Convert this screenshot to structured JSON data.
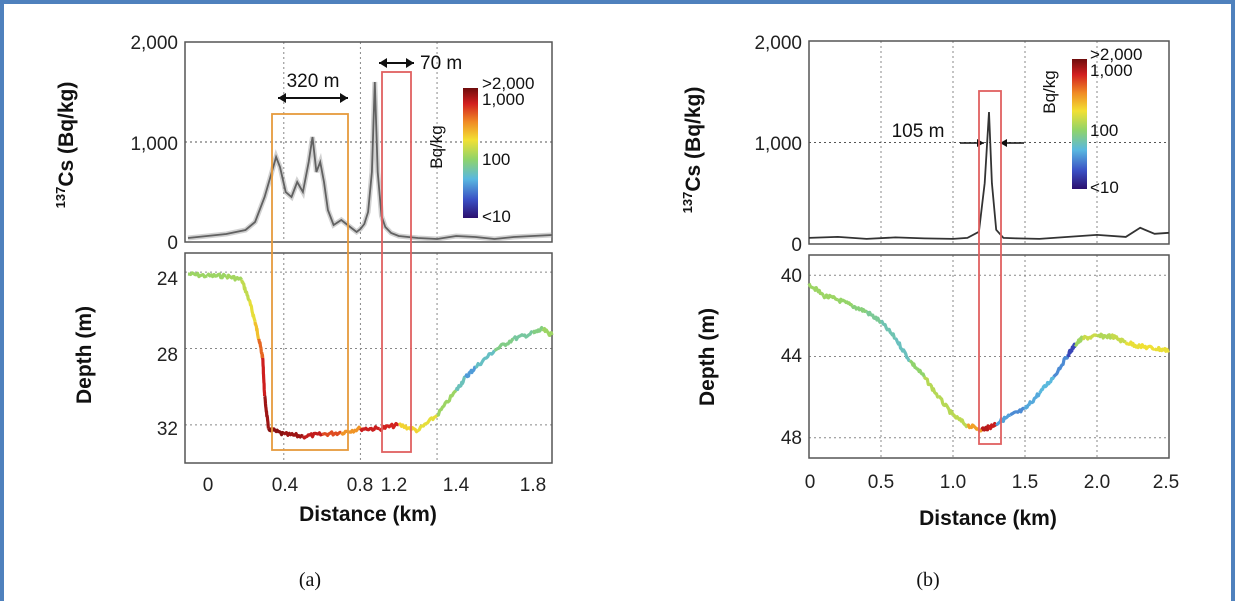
{
  "colors": {
    "frame": "#4f81bd",
    "line": "#333333",
    "box_a_wide": "#e69a3c",
    "box_narrow": "#e06060",
    "colorbar_stops": [
      "#2b0f6e",
      "#3a4fc4",
      "#59b8e0",
      "#8fd36b",
      "#f2e033",
      "#f08a24",
      "#d21f1f",
      "#6e0c0c"
    ]
  },
  "chart_data": [
    {
      "id": "a",
      "type": "line",
      "caption": "(a)",
      "top": {
        "ylabel_sup": "137",
        "ylabel": "Cs (Bq/kg)",
        "ylim": [
          0,
          2000
        ],
        "yticks": [
          "0",
          "1,000",
          "2,000"
        ],
        "xlim": [
          -0.1,
          1.8
        ],
        "series": {
          "x": [
            -0.1,
            0.0,
            0.1,
            0.2,
            0.25,
            0.3,
            0.33,
            0.36,
            0.38,
            0.41,
            0.44,
            0.47,
            0.5,
            0.53,
            0.55,
            0.57,
            0.59,
            0.61,
            0.63,
            0.66,
            0.7,
            0.74,
            0.78,
            0.8,
            0.82,
            0.84,
            0.86,
            0.875,
            0.89,
            0.91,
            0.93,
            0.96,
            1.0,
            1.1,
            1.2,
            1.3,
            1.4,
            1.5,
            1.6,
            1.7,
            1.8
          ],
          "values": [
            40,
            60,
            80,
            120,
            200,
            450,
            650,
            850,
            750,
            500,
            450,
            600,
            500,
            800,
            1050,
            700,
            800,
            600,
            320,
            170,
            220,
            160,
            100,
            130,
            180,
            300,
            700,
            1600,
            700,
            260,
            150,
            90,
            60,
            40,
            30,
            60,
            50,
            30,
            50,
            60,
            70
          ]
        },
        "annotations": [
          {
            "label": "320 m",
            "x0": 0.36,
            "x1": 0.64
          },
          {
            "label": "70 m",
            "x0": 0.82,
            "x1": 0.9
          }
        ],
        "colorbar": {
          "label": "Bq/kg",
          "ticks": [
            ">2,000",
            "1,000",
            "100",
            "<10"
          ]
        }
      },
      "bottom": {
        "ylabel": "Depth (m)",
        "ylim": [
          34,
          23
        ],
        "yticks": [
          "24",
          "28",
          "32"
        ],
        "xlabel": "Distance (km)",
        "xticks": [
          "0",
          "0.4",
          "0.8",
          "1.2",
          "1.4",
          "1.8"
        ],
        "xtick_values": [
          0,
          0.4,
          0.8,
          1.2,
          1.4,
          1.8
        ],
        "depth_profile": {
          "x": [
            -0.1,
            0.0,
            0.1,
            0.18,
            0.22,
            0.25,
            0.27,
            0.29,
            0.3,
            0.32,
            0.4,
            0.5,
            0.6,
            0.7,
            0.8,
            0.9,
            1.0,
            1.1,
            1.2,
            1.3,
            1.35,
            1.4,
            1.5,
            1.6,
            1.7,
            1.75,
            1.8
          ],
          "values": [
            24.1,
            24.2,
            24.2,
            24.4,
            25.5,
            26.6,
            27.5,
            28.5,
            30.5,
            32.2,
            32.5,
            32.6,
            32.5,
            32.4,
            32.2,
            32.2,
            32.0,
            32.3,
            31.5,
            30.2,
            29.5,
            29.0,
            28.1,
            27.5,
            27.2,
            27.0,
            27.3
          ],
          "color_levels": [
            30,
            30,
            30,
            35,
            55,
            80,
            150,
            500,
            900,
            1500,
            1500,
            900,
            700,
            150,
            250,
            1200,
            90,
            90,
            45,
            15,
            10,
            3,
            20,
            20,
            12,
            30,
            30
          ]
        },
        "boxes": [
          {
            "x0": 0.3,
            "x1": 0.66,
            "y0": 23.9,
            "y1": 33.1
          },
          {
            "x0": 0.81,
            "x1": 0.94,
            "y0": 23.9,
            "y1": 33.1
          }
        ]
      }
    },
    {
      "id": "b",
      "type": "line",
      "caption": "(b)",
      "top": {
        "ylabel_sup": "137",
        "ylabel": "Cs (Bq/kg)",
        "ylim": [
          0,
          2000
        ],
        "yticks": [
          "0",
          "1,000",
          "2,000"
        ],
        "xlim": [
          0,
          2.5
        ],
        "series": {
          "x": [
            0.0,
            0.2,
            0.4,
            0.6,
            0.8,
            1.0,
            1.1,
            1.18,
            1.22,
            1.25,
            1.27,
            1.3,
            1.35,
            1.45,
            1.6,
            1.8,
            2.0,
            2.2,
            2.3,
            2.4,
            2.5
          ],
          "values": [
            60,
            70,
            50,
            65,
            55,
            50,
            60,
            120,
            600,
            1300,
            600,
            140,
            60,
            55,
            50,
            70,
            90,
            70,
            160,
            100,
            110
          ]
        },
        "annotations": [
          {
            "label": "105 m",
            "x0": 1.2,
            "x1": 1.31
          }
        ],
        "colorbar": {
          "label": "Bq/kg",
          "ticks": [
            ">2,000",
            "1,000",
            "100",
            "<10"
          ]
        }
      },
      "bottom": {
        "ylabel": "Depth (m)",
        "ylim": [
          49,
          39
        ],
        "yticks": [
          "40",
          "44",
          "48"
        ],
        "xlabel": "Distance (km)",
        "xticks": [
          "0",
          "0.5",
          "1.0",
          "1.5",
          "2.0",
          "2.5"
        ],
        "xtick_values": [
          0,
          0.5,
          1.0,
          1.5,
          2.0,
          2.5
        ],
        "depth_profile": {
          "x": [
            0.0,
            0.1,
            0.2,
            0.3,
            0.4,
            0.5,
            0.6,
            0.7,
            0.8,
            0.9,
            1.0,
            1.1,
            1.2,
            1.25,
            1.3,
            1.4,
            1.5,
            1.6,
            1.7,
            1.8,
            1.85,
            1.9,
            2.0,
            2.1,
            2.2,
            2.3,
            2.4,
            2.5
          ],
          "values": [
            40.4,
            41.0,
            41.2,
            41.5,
            41.8,
            42.3,
            43.1,
            44.2,
            45.0,
            46.0,
            46.9,
            47.4,
            47.6,
            47.5,
            47.3,
            46.9,
            46.6,
            45.8,
            45.0,
            43.9,
            43.4,
            43.1,
            43.0,
            43.0,
            43.3,
            43.5,
            43.6,
            43.7
          ],
          "color_levels": [
            30,
            30,
            30,
            25,
            20,
            15,
            12,
            12,
            40,
            40,
            40,
            45,
            300,
            1500,
            8,
            6,
            5,
            10,
            8,
            3,
            2,
            60,
            40,
            35,
            60,
            80,
            70,
            70
          ]
        },
        "boxes": [
          {
            "x0": 1.18,
            "x1": 1.33,
            "y0": 39.0,
            "y1": 48.2
          }
        ]
      }
    }
  ]
}
